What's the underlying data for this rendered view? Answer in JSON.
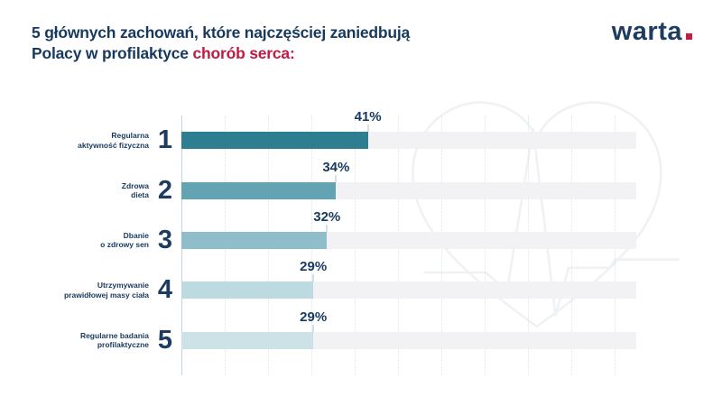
{
  "title": {
    "line1": "5 głównych zachowań, które najczęściej zaniedbują",
    "line2_prefix": "Polacy w profilaktyce ",
    "line2_highlight": "chorób serca:"
  },
  "logo": {
    "text": "warta"
  },
  "colors": {
    "navy": "#17395e",
    "red": "#c11b44",
    "track": "#f2f2f4",
    "bar_colors": [
      "#2e7e91",
      "#63a3b2",
      "#8fbeca",
      "#bddae0",
      "#cde2e6"
    ],
    "gridline": "#d9e4ec",
    "axis": "#c2d3de",
    "watermark": "#f0f1f4"
  },
  "chart_data": {
    "type": "bar",
    "orientation": "horizontal",
    "title": "5 głównych zachowań, które najczęściej zaniedbują Polacy w profilaktyce chorób serca:",
    "xlabel": "",
    "ylabel": "",
    "xlim": [
      0,
      100
    ],
    "grid": "dotted-vertical",
    "legend": "none",
    "categories": [
      "Regularna aktywność fizyczna",
      "Zdrowa dieta",
      "Dbanie o zdrowy sen",
      "Utrzymywanie prawidłowej masy ciała",
      "Regularne badania profilaktyczne"
    ],
    "values": [
      41,
      34,
      32,
      29,
      29
    ],
    "rows": [
      {
        "rank": "1",
        "label_lines": [
          "Regularna",
          "aktywność fizyczna"
        ],
        "value": 41,
        "value_label": "41%"
      },
      {
        "rank": "2",
        "label_lines": [
          "Zdrowa",
          "dieta"
        ],
        "value": 34,
        "value_label": "34%"
      },
      {
        "rank": "3",
        "label_lines": [
          "Dbanie",
          "o zdrowy sen"
        ],
        "value": 32,
        "value_label": "32%"
      },
      {
        "rank": "4",
        "label_lines": [
          "Utrzymywanie",
          "prawidłowej masy ciała"
        ],
        "value": 29,
        "value_label": "29%"
      },
      {
        "rank": "5",
        "label_lines": [
          "Regularne badania",
          "profilaktyczne"
        ],
        "value": 29,
        "value_label": "29%"
      }
    ]
  }
}
